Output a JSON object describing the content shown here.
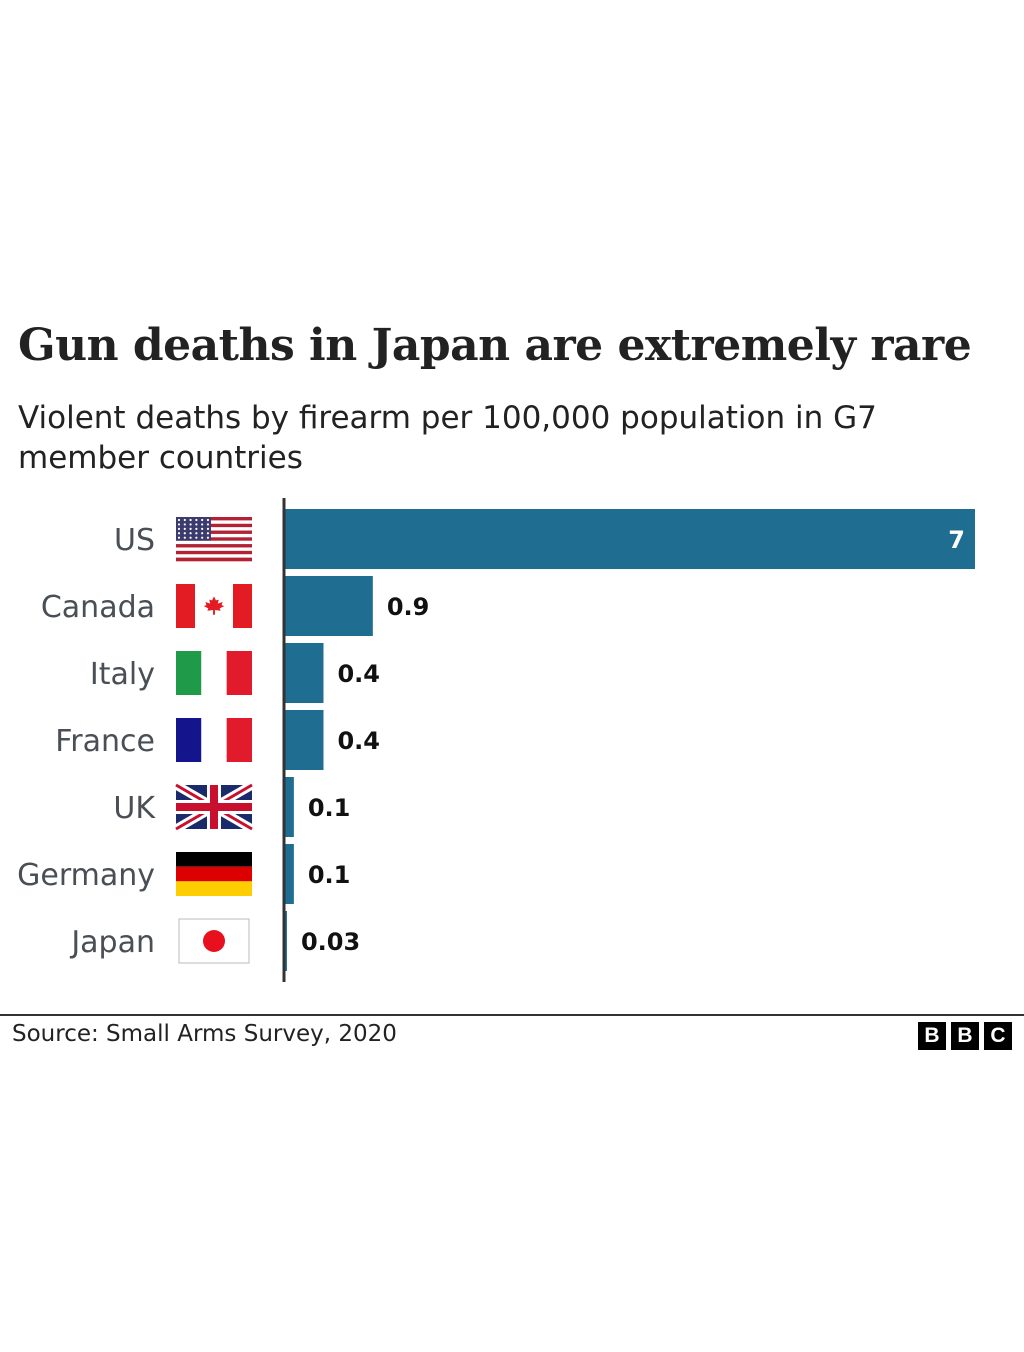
{
  "title": "Gun deaths in Japan are extremely rare",
  "subtitle": "Violent deaths by firearm per 100,000 population in G7 member countries",
  "source": "Source: Small Arms Survey, 2020",
  "logo": [
    "B",
    "B",
    "C"
  ],
  "colors": {
    "bar": "#1f6e92",
    "label_text": "#4a4f55",
    "value_text": "#111111",
    "value_text_inside": "#ffffff",
    "axis": "#333333"
  },
  "chart_data": {
    "type": "bar",
    "orientation": "horizontal",
    "title": "Gun deaths in Japan are extremely rare",
    "subtitle": "Violent deaths by firearm per 100,000 population in G7 member countries",
    "categories": [
      "US",
      "Canada",
      "Italy",
      "France",
      "UK",
      "Germany",
      "Japan"
    ],
    "flags": [
      "us-flag-icon",
      "canada-flag-icon",
      "italy-flag-icon",
      "france-flag-icon",
      "uk-flag-icon",
      "germany-flag-icon",
      "japan-flag-icon"
    ],
    "values": [
      7,
      0.9,
      0.4,
      0.4,
      0.1,
      0.1,
      0.03
    ],
    "value_labels": [
      "7",
      "0.9",
      "0.4",
      "0.4",
      "0.1",
      "0.1",
      "0.03"
    ],
    "xlim": [
      0,
      7
    ],
    "grid": false,
    "legend": "none"
  }
}
